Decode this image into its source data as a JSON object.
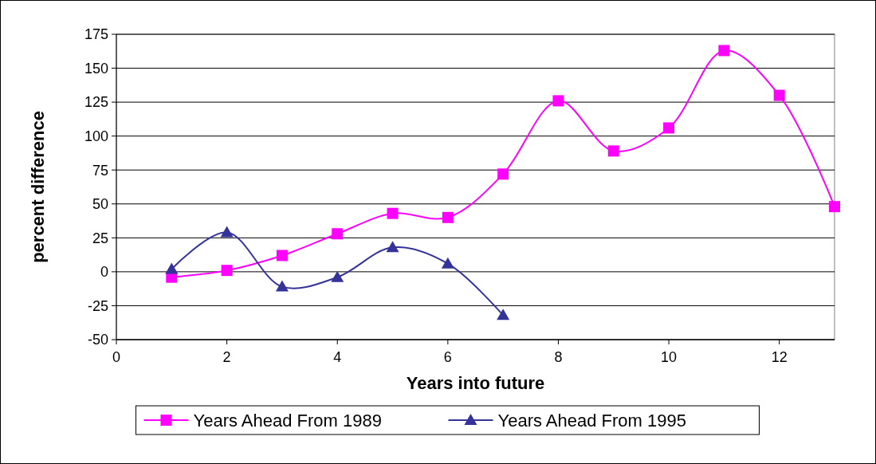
{
  "chart_data": {
    "type": "line",
    "xlabel": "Years into future",
    "ylabel": "percent difference",
    "x": [
      1,
      2,
      3,
      4,
      5,
      6,
      7,
      8,
      9,
      10,
      11,
      12,
      13
    ],
    "series": [
      {
        "name": "Years Ahead From 1989",
        "color": "#ff00ff",
        "marker": "square",
        "values": [
          -4,
          1,
          12,
          28,
          43,
          40,
          72,
          126,
          89,
          106,
          163,
          130,
          48
        ]
      },
      {
        "name": "Years Ahead From 1995",
        "color": "#333399",
        "marker": "triangle",
        "values": [
          2,
          29,
          -11,
          -4,
          18,
          6,
          -32,
          null,
          null,
          null,
          null,
          null,
          null
        ]
      }
    ],
    "xlim": [
      0,
      13
    ],
    "xticks": [
      0,
      2,
      4,
      6,
      8,
      10,
      12
    ],
    "ylim": [
      -50,
      175
    ],
    "yticks": [
      -50,
      -25,
      0,
      25,
      50,
      75,
      100,
      125,
      150,
      175
    ],
    "grid": "y",
    "legend": "bottom",
    "line_style": "solid"
  }
}
